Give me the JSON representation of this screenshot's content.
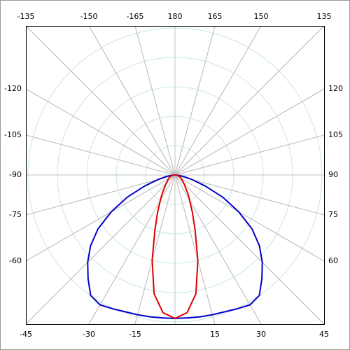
{
  "chart_data": {
    "type": "polar",
    "x": [
      -90,
      -85,
      -80,
      -75,
      -70,
      -65,
      -60,
      -55,
      -50,
      -45,
      -40,
      -35,
      -30,
      -25,
      -20,
      -15,
      -10,
      -5,
      0,
      5,
      10,
      15,
      20,
      25,
      30,
      35,
      40,
      45,
      50,
      55,
      60,
      65,
      70,
      75,
      80,
      85,
      90
    ],
    "series": [
      {
        "color": "#0000cc",
        "values": [
          0,
          0.1,
          0.3,
          0.6,
          1.1,
          1.8,
          2.5,
          3.2,
          3.75,
          4.2,
          4.6,
          5.0,
          5.1,
          5.02,
          4.95,
          4.92,
          4.9,
          4.88,
          4.88,
          4.88,
          4.9,
          4.92,
          4.95,
          5.02,
          5.1,
          5.0,
          4.6,
          4.2,
          3.75,
          3.2,
          2.5,
          1.8,
          1.1,
          0.6,
          0.3,
          0.1,
          0
        ]
      },
      {
        "color": "#dd0000",
        "values": [
          0,
          0.05,
          0.1,
          0.14,
          0.18,
          0.21,
          0.25,
          0.3,
          0.35,
          0.45,
          0.55,
          0.75,
          1.0,
          1.4,
          2.0,
          3.0,
          4.1,
          4.7,
          4.88,
          4.7,
          4.1,
          3.0,
          2.0,
          1.4,
          1.0,
          0.75,
          0.55,
          0.45,
          0.35,
          0.3,
          0.25,
          0.21,
          0.18,
          0.14,
          0.1,
          0.05,
          0
        ]
      }
    ],
    "rlim": [
      0,
      5
    ],
    "rticks": [
      1,
      2,
      3,
      4,
      5
    ],
    "angle_ticks": [
      -135,
      -150,
      -165,
      180,
      165,
      150,
      135,
      -120,
      -105,
      -90,
      -75,
      -60,
      120,
      105,
      90,
      75,
      60,
      -45,
      -30,
      -15,
      15,
      30,
      45
    ],
    "grid": true
  }
}
